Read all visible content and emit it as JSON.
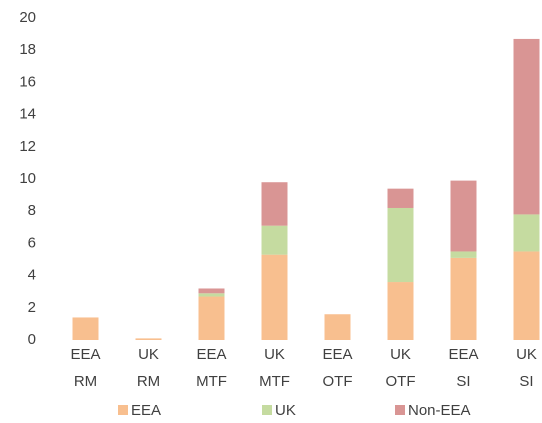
{
  "chart_data": {
    "type": "stacked_bar",
    "categories": [
      [
        "EEA",
        "RM"
      ],
      [
        "UK",
        "RM"
      ],
      [
        "EEA",
        "MTF"
      ],
      [
        "UK",
        "MTF"
      ],
      [
        "EEA",
        "OTF"
      ],
      [
        "UK",
        "OTF"
      ],
      [
        "EEA",
        "SI"
      ],
      [
        "UK",
        "SI"
      ]
    ],
    "series": [
      {
        "name": "EEA",
        "color": "#f8bf8f",
        "values": [
          1.4,
          0.1,
          2.7,
          5.3,
          1.6,
          3.6,
          5.1,
          5.5
        ]
      },
      {
        "name": "UK",
        "color": "#c5dba0",
        "values": [
          0,
          0,
          0.2,
          1.8,
          0,
          4.6,
          0.4,
          2.3
        ]
      },
      {
        "name": "Non-EEA",
        "color": "#d99594",
        "values": [
          0,
          0,
          0.3,
          2.7,
          0,
          1.2,
          4.4,
          10.9
        ]
      }
    ],
    "ylim": [
      0,
      20
    ],
    "yticks": [
      0,
      2,
      4,
      6,
      8,
      10,
      12,
      14,
      16,
      18,
      20
    ],
    "legend": "bottom"
  }
}
